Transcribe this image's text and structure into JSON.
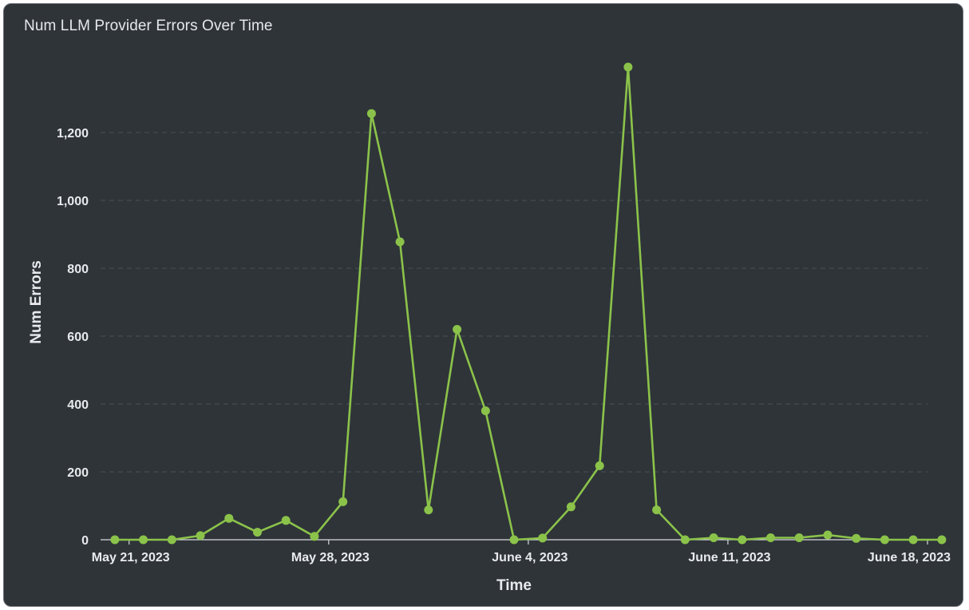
{
  "panel": {
    "title": "Num LLM Provider Errors Over Time"
  },
  "chart_data": {
    "type": "line",
    "title": "Num LLM Provider Errors Over Time",
    "xlabel": "Time",
    "ylabel": "Num Errors",
    "grid": true,
    "legend": "none",
    "x_range": [
      "2023-05-20",
      "2023-06-18"
    ],
    "ylim": [
      0,
      1400
    ],
    "y_ticks": [
      0,
      200,
      400,
      600,
      800,
      1000,
      1200
    ],
    "y_tick_labels": [
      "0",
      "200",
      "400",
      "600",
      "800",
      "1,000",
      "1,200"
    ],
    "x_ticks": [
      "2023-05-21",
      "2023-05-28",
      "2023-06-04",
      "2023-06-11",
      "2023-06-18"
    ],
    "x_tick_labels": [
      "May 21, 2023",
      "May 28, 2023",
      "June 4, 2023",
      "June 11, 2023",
      "June 18, 2023"
    ],
    "series": [
      {
        "color": "#8bc34a",
        "x": [
          "2023-05-21",
          "2023-05-22",
          "2023-05-23",
          "2023-05-24",
          "2023-05-25",
          "2023-05-26",
          "2023-05-27",
          "2023-05-28",
          "2023-05-29",
          "2023-05-30",
          "2023-05-31",
          "2023-06-01",
          "2023-06-02",
          "2023-06-03",
          "2023-06-04",
          "2023-06-05",
          "2023-06-06",
          "2023-06-07",
          "2023-06-08",
          "2023-06-09",
          "2023-06-10",
          "2023-06-11",
          "2023-06-12",
          "2023-06-13",
          "2023-06-14",
          "2023-06-15",
          "2023-06-16",
          "2023-06-17",
          "2023-06-18",
          "2023-06-19"
        ],
        "values": [
          0,
          0,
          0,
          12,
          63,
          22,
          57,
          10,
          112,
          1256,
          878,
          88,
          620,
          380,
          0,
          5,
          97,
          218,
          1393,
          88,
          0,
          6,
          0,
          6,
          6,
          14,
          4,
          0,
          0,
          0
        ]
      }
    ]
  }
}
